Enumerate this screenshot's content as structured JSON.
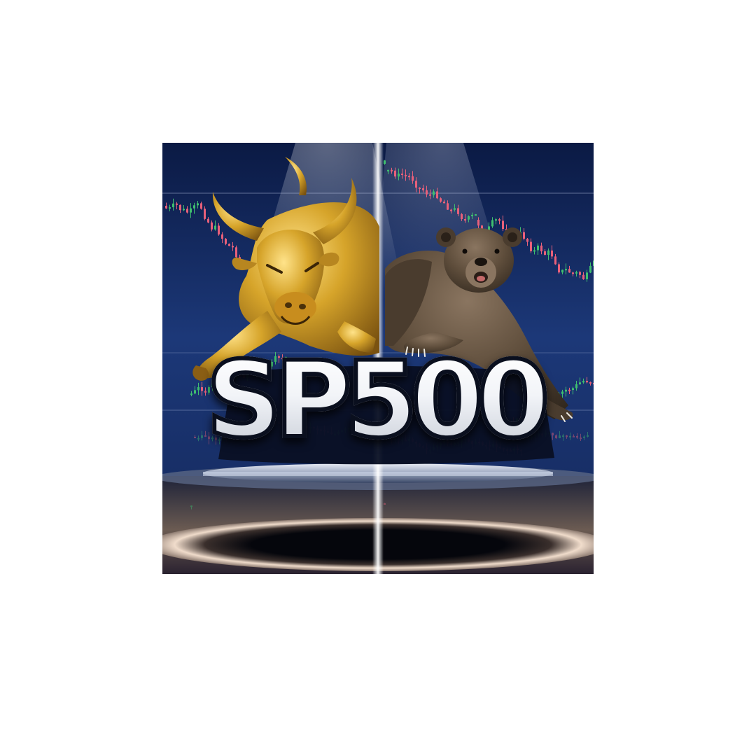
{
  "poster": {
    "title": "SP500",
    "subjects": {
      "left": "golden-bull",
      "right": "brown-bear"
    },
    "colors": {
      "background_top": "#0d1e4a",
      "background_mid": "#1e3a7a",
      "candle_up": "#3fbf6f",
      "candle_down": "#e8607a",
      "bull_gold": "#d6a42a",
      "bear_brown": "#5e4d3b",
      "title_fill": "#ffffff",
      "title_outline": "#0a0f1e"
    }
  }
}
